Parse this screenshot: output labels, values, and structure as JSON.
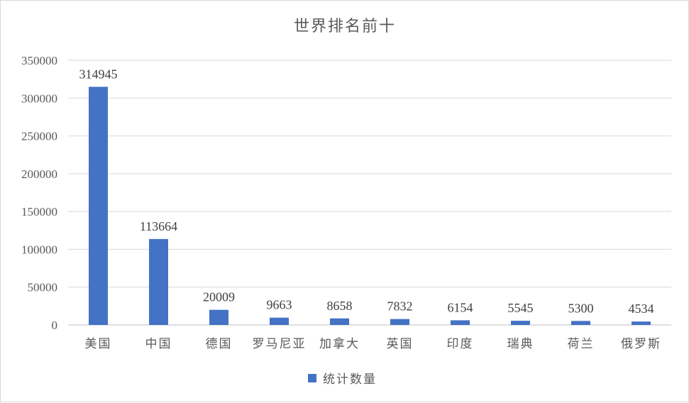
{
  "chart_data": {
    "type": "bar",
    "title": "世界排名前十",
    "categories": [
      "美国",
      "中国",
      "德国",
      "罗马尼亚",
      "加拿大",
      "英国",
      "印度",
      "瑞典",
      "荷兰",
      "俄罗斯"
    ],
    "series": [
      {
        "name": "统计数量",
        "values": [
          314945,
          113664,
          20009,
          9663,
          8658,
          7832,
          6154,
          5545,
          5300,
          4534
        ],
        "color": "#4472c4"
      }
    ],
    "ylim": [
      0,
      350000
    ],
    "yticks": [
      "0",
      "50000",
      "100000",
      "150000",
      "200000",
      "250000",
      "300000",
      "350000"
    ],
    "grid": true,
    "legend_position": "bottom",
    "data_labels": [
      "314945",
      "113664",
      "20009",
      "9663",
      "8658",
      "7832",
      "6154",
      "5545",
      "5300",
      "4534"
    ]
  }
}
